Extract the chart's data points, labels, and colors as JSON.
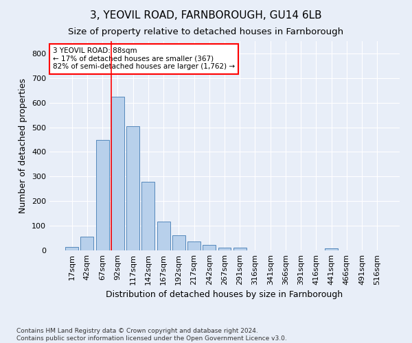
{
  "title": "3, YEOVIL ROAD, FARNBOROUGH, GU14 6LB",
  "subtitle": "Size of property relative to detached houses in Farnborough",
  "xlabel": "Distribution of detached houses by size in Farnborough",
  "ylabel": "Number of detached properties",
  "bar_labels": [
    "17sqm",
    "42sqm",
    "67sqm",
    "92sqm",
    "117sqm",
    "142sqm",
    "167sqm",
    "192sqm",
    "217sqm",
    "242sqm",
    "267sqm",
    "291sqm",
    "316sqm",
    "341sqm",
    "366sqm",
    "391sqm",
    "416sqm",
    "441sqm",
    "466sqm",
    "491sqm",
    "516sqm"
  ],
  "bar_values": [
    13,
    55,
    450,
    625,
    505,
    280,
    118,
    62,
    35,
    22,
    10,
    10,
    0,
    0,
    0,
    0,
    0,
    8,
    0,
    0,
    0
  ],
  "bar_color": "#b8d0eb",
  "bar_edge_color": "#5588bb",
  "vline_color": "red",
  "annotation_text": "3 YEOVIL ROAD: 88sqm\n← 17% of detached houses are smaller (367)\n82% of semi-detached houses are larger (1,762) →",
  "annotation_box_color": "white",
  "annotation_box_edge": "red",
  "ylim": [
    0,
    850
  ],
  "yticks": [
    0,
    100,
    200,
    300,
    400,
    500,
    600,
    700,
    800
  ],
  "bg_color": "#e8eef8",
  "plot_bg_color": "#e8eef8",
  "footnote": "Contains HM Land Registry data © Crown copyright and database right 2024.\nContains public sector information licensed under the Open Government Licence v3.0.",
  "title_fontsize": 11,
  "subtitle_fontsize": 9.5,
  "xlabel_fontsize": 9,
  "ylabel_fontsize": 9,
  "tick_fontsize": 8,
  "annot_fontsize": 7.5
}
